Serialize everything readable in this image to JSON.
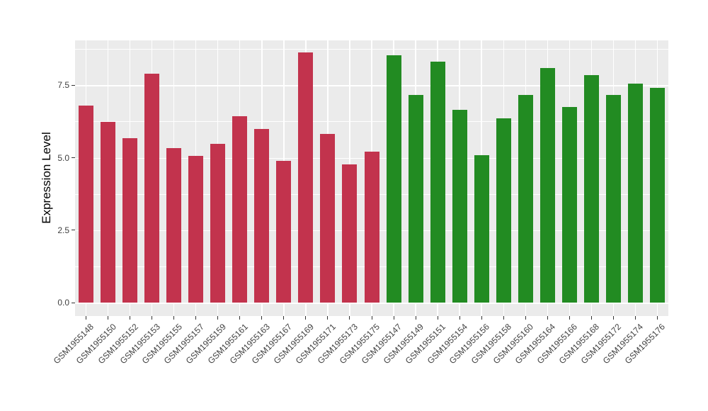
{
  "figure": {
    "background": "#FFFFFF",
    "panel_background": "#EBEBEB",
    "grid_color": "#FFFFFF",
    "tick_color": "#333333",
    "axis_text_color": "#404040"
  },
  "chart_data": {
    "type": "bar",
    "title": "",
    "xlabel": "",
    "ylabel": "Expression Level",
    "ylim": [
      0,
      9.05
    ],
    "yticks": [
      0,
      2.5,
      5,
      7.5
    ],
    "ytick_labels": [
      "0.0",
      "2.5",
      "5.0",
      "7.5"
    ],
    "yticks_minor": [
      1.25,
      3.75,
      6.25,
      8.75
    ],
    "grid": "on",
    "legend": "none",
    "x_label_angle": 45,
    "bar_colors": {
      "group1": "#C2334D",
      "group2": "#228B22"
    },
    "bars": [
      {
        "label": "GSM1955148",
        "value": 6.8,
        "group": "group1"
      },
      {
        "label": "GSM1955150",
        "value": 6.23,
        "group": "group1"
      },
      {
        "label": "GSM1955152",
        "value": 5.68,
        "group": "group1"
      },
      {
        "label": "GSM1955153",
        "value": 7.9,
        "group": "group1"
      },
      {
        "label": "GSM1955155",
        "value": 5.32,
        "group": "group1"
      },
      {
        "label": "GSM1955157",
        "value": 5.06,
        "group": "group1"
      },
      {
        "label": "GSM1955159",
        "value": 5.48,
        "group": "group1"
      },
      {
        "label": "GSM1955161",
        "value": 6.43,
        "group": "group1"
      },
      {
        "label": "GSM1955163",
        "value": 6.0,
        "group": "group1"
      },
      {
        "label": "GSM1955167",
        "value": 4.9,
        "group": "group1"
      },
      {
        "label": "GSM1955169",
        "value": 8.64,
        "group": "group1"
      },
      {
        "label": "GSM1955171",
        "value": 5.81,
        "group": "group1"
      },
      {
        "label": "GSM1955173",
        "value": 4.76,
        "group": "group1"
      },
      {
        "label": "GSM1955175",
        "value": 5.2,
        "group": "group1"
      },
      {
        "label": "GSM1955147",
        "value": 8.54,
        "group": "group2"
      },
      {
        "label": "GSM1955149",
        "value": 7.16,
        "group": "group2"
      },
      {
        "label": "GSM1955151",
        "value": 8.31,
        "group": "group2"
      },
      {
        "label": "GSM1955154",
        "value": 6.64,
        "group": "group2"
      },
      {
        "label": "GSM1955156",
        "value": 5.09,
        "group": "group2"
      },
      {
        "label": "GSM1955158",
        "value": 6.35,
        "group": "group2"
      },
      {
        "label": "GSM1955160",
        "value": 7.16,
        "group": "group2"
      },
      {
        "label": "GSM1955164",
        "value": 8.09,
        "group": "group2"
      },
      {
        "label": "GSM1955166",
        "value": 6.76,
        "group": "group2"
      },
      {
        "label": "GSM1955168",
        "value": 7.84,
        "group": "group2"
      },
      {
        "label": "GSM1955172",
        "value": 7.16,
        "group": "group2"
      },
      {
        "label": "GSM1955174",
        "value": 7.56,
        "group": "group2"
      },
      {
        "label": "GSM1955176",
        "value": 7.4,
        "group": "group2"
      }
    ]
  }
}
